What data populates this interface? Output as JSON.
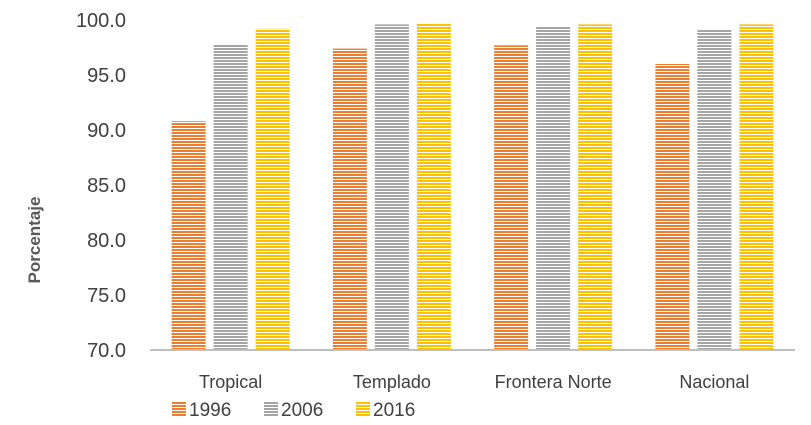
{
  "chart_data": {
    "type": "bar",
    "title": "",
    "xlabel": "",
    "ylabel": "Porcentaje",
    "ylim": [
      70.0,
      100.0
    ],
    "yticks": [
      "70.0",
      "75.0",
      "80.0",
      "85.0",
      "90.0",
      "95.0",
      "100.0"
    ],
    "categories": [
      "Tropical",
      "Templado",
      "Frontera Norte",
      "Nacional"
    ],
    "series": [
      {
        "name": "1996",
        "values": [
          90.8,
          97.4,
          97.7,
          96.0
        ],
        "color": "#ED7D31",
        "pattern": "horizontal-lines"
      },
      {
        "name": "2006",
        "values": [
          97.8,
          99.6,
          99.4,
          99.1
        ],
        "color": "#A5A5A5",
        "pattern": "horizontal-lines"
      },
      {
        "name": "2016",
        "values": [
          99.2,
          99.7,
          99.6,
          99.6
        ],
        "color": "#FFC000",
        "pattern": "horizontal-lines"
      }
    ],
    "grid": false,
    "legend": "bottom-left"
  }
}
